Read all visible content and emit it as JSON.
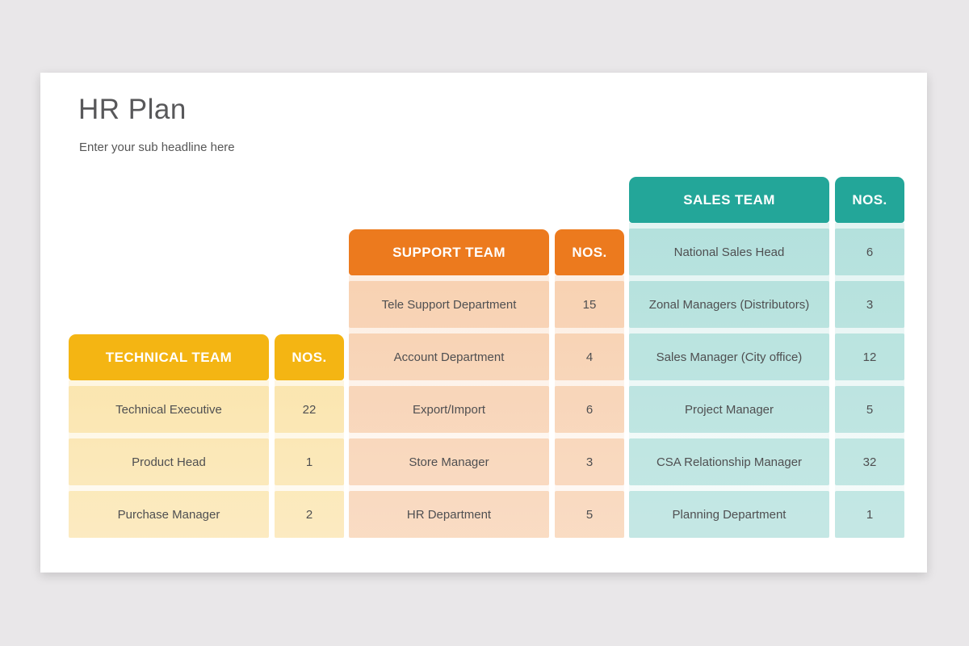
{
  "header": {
    "title": "HR Plan",
    "subtitle": "Enter your sub headline here"
  },
  "palette": {
    "page_background": "#E9E7E9",
    "card_background": "#FFFFFF",
    "title_text": "#58585A",
    "cell_text": "#4F4F51",
    "header_text": "#FFFFFF",
    "technical_accent": "#F4B513",
    "support_accent": "#EC7A1E",
    "sales_accent": "#23A699"
  },
  "chart_data": [
    {
      "type": "table",
      "title": "TECHNICAL TEAM",
      "columns": [
        "TECHNICAL TEAM",
        "NOS."
      ],
      "accent": "#F4B513",
      "rows": [
        [
          "Technical Executive",
          "22"
        ],
        [
          "Product Head",
          "1"
        ],
        [
          "Purchase Manager",
          "2"
        ]
      ]
    },
    {
      "type": "table",
      "title": "SUPPORT TEAM",
      "columns": [
        "SUPPORT TEAM",
        "NOS."
      ],
      "accent": "#EC7A1E",
      "rows": [
        [
          "Tele Support Department",
          "15"
        ],
        [
          "Account Department",
          "4"
        ],
        [
          "Export/Import",
          "6"
        ],
        [
          "Store Manager",
          "3"
        ],
        [
          "HR Department",
          "5"
        ]
      ]
    },
    {
      "type": "table",
      "title": "SALES TEAM",
      "columns": [
        "SALES TEAM",
        "NOS."
      ],
      "accent": "#23A699",
      "rows": [
        [
          "National Sales Head",
          "6"
        ],
        [
          "Zonal Managers (Distributors)",
          "3"
        ],
        [
          "Sales Manager (City office)",
          "12"
        ],
        [
          "Project Manager",
          "5"
        ],
        [
          "CSA Relationship Manager",
          "32"
        ],
        [
          "Planning Department",
          "1"
        ]
      ]
    }
  ]
}
